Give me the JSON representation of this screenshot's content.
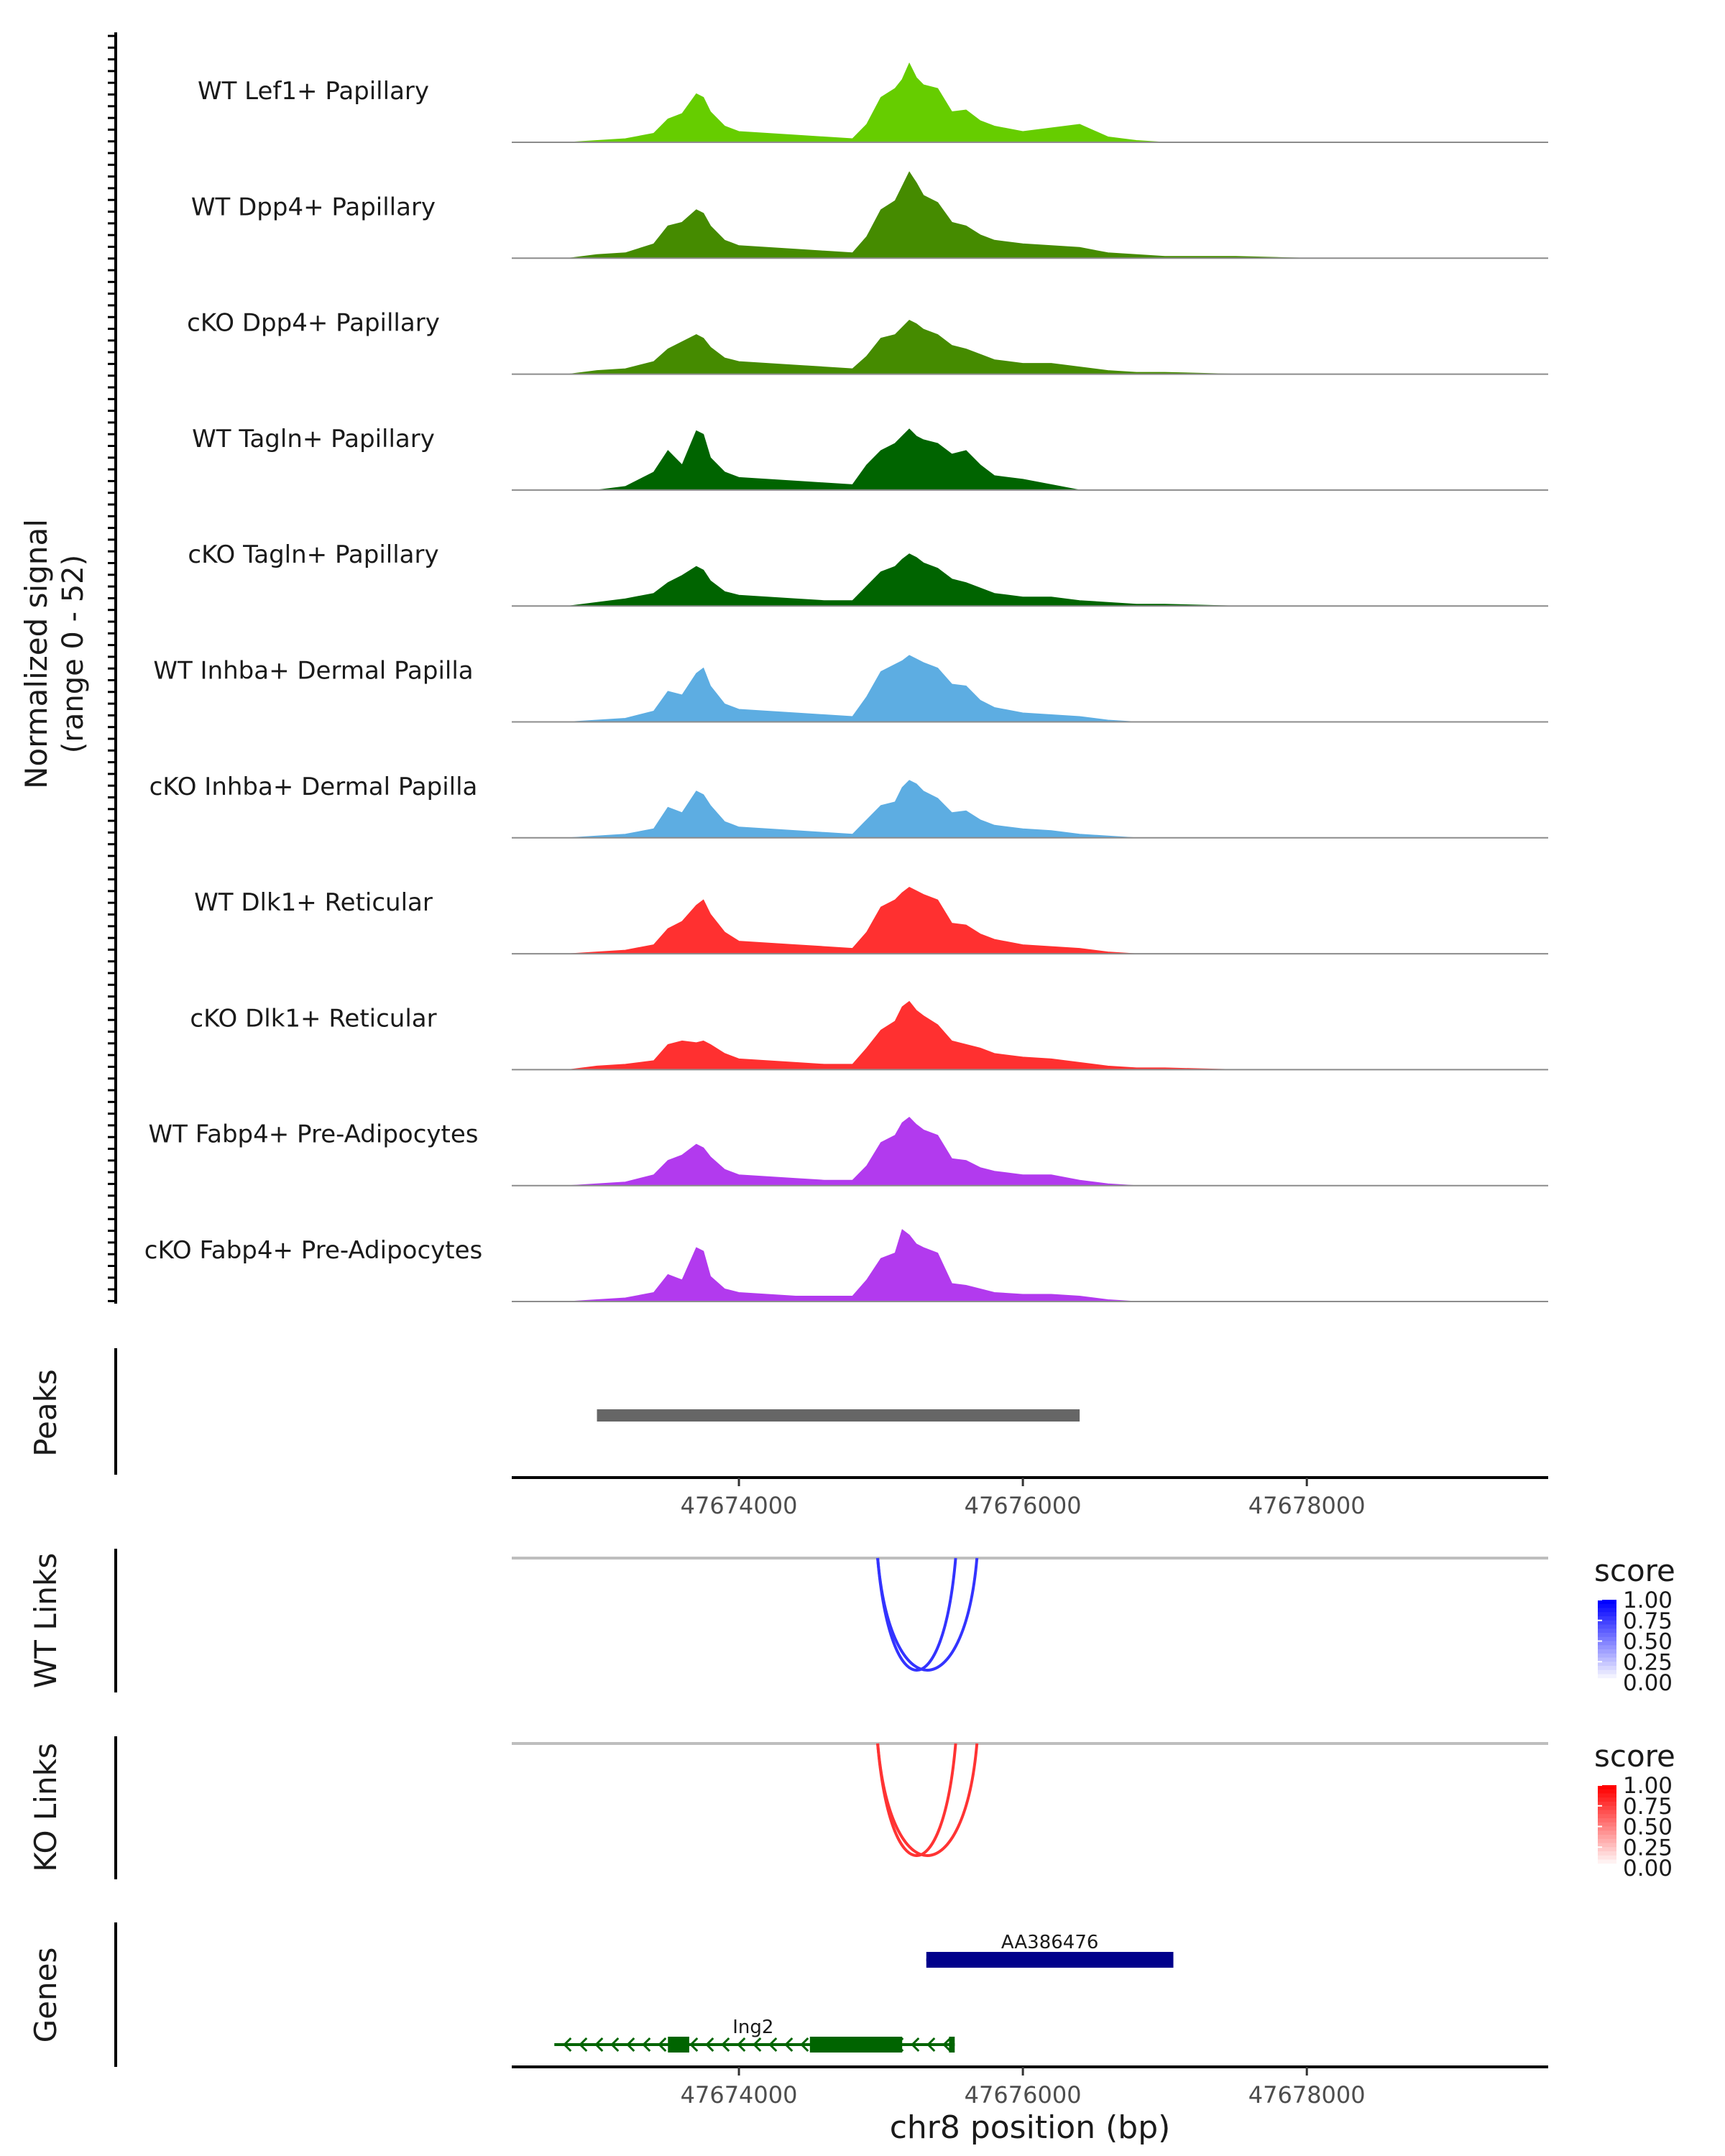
{
  "chart_data": {
    "type": "genome-coverage-track",
    "chromosome": "chr8",
    "xlim": [
      47672400,
      47679700
    ],
    "coverage": {
      "ylabel_line1": "Normalized signal",
      "ylabel_line2": "(range 0 - 52)",
      "ylim": [
        0,
        52
      ],
      "profile_x": [
        47672400,
        47672800,
        47673000,
        47673200,
        47673400,
        47673500,
        47673600,
        47673700,
        47673750,
        47673800,
        47673900,
        47674000,
        47674200,
        47674400,
        47674600,
        47674800,
        47674900,
        47675000,
        47675100,
        47675150,
        47675200,
        47675250,
        47675300,
        47675400,
        47675500,
        47675600,
        47675700,
        47675800,
        47676000,
        47676200,
        47676400,
        47676600,
        47676800,
        47677000,
        47677500,
        47678000,
        47678500,
        47679000,
        47679500,
        47679700
      ],
      "tracks": [
        {
          "name": "WT Lef1+ Papillary",
          "color": "#66cd00",
          "values": [
            0,
            0,
            1,
            2,
            5,
            13,
            16,
            27,
            25,
            17,
            9,
            6,
            5,
            4,
            3,
            2,
            10,
            25,
            30,
            35,
            44,
            36,
            32,
            30,
            17,
            18,
            12,
            9,
            6,
            8,
            10,
            3,
            1,
            0,
            0,
            0,
            0,
            0,
            0,
            0
          ]
        },
        {
          "name": "WT Dpp4+ Papillary",
          "color": "#458b00",
          "values": [
            0,
            0,
            2,
            3,
            8,
            18,
            20,
            27,
            25,
            18,
            10,
            7,
            6,
            5,
            4,
            3,
            12,
            27,
            32,
            40,
            48,
            42,
            35,
            31,
            20,
            18,
            13,
            10,
            8,
            7,
            6,
            3,
            2,
            1,
            1,
            0,
            0,
            0,
            0,
            0
          ]
        },
        {
          "name": "cKO Dpp4+ Papillary",
          "color": "#458b00",
          "values": [
            0,
            0,
            2,
            3,
            7,
            14,
            18,
            22,
            20,
            15,
            9,
            7,
            6,
            5,
            4,
            3,
            10,
            20,
            22,
            26,
            30,
            28,
            25,
            22,
            16,
            14,
            11,
            8,
            6,
            6,
            4,
            2,
            1,
            1,
            0,
            0,
            0,
            0,
            0,
            0
          ]
        },
        {
          "name": "WT Tagln+ Papillary",
          "color": "#006400",
          "values": [
            0,
            0,
            0,
            2,
            10,
            22,
            14,
            33,
            31,
            18,
            10,
            7,
            6,
            5,
            4,
            3,
            14,
            22,
            26,
            30,
            34,
            30,
            28,
            26,
            20,
            22,
            14,
            8,
            6,
            3,
            0,
            0,
            0,
            0,
            0,
            0,
            0,
            0,
            0,
            0
          ]
        },
        {
          "name": "cKO Tagln+ Papillary",
          "color": "#006400",
          "values": [
            0,
            0,
            2,
            4,
            7,
            13,
            17,
            22,
            20,
            14,
            8,
            6,
            5,
            4,
            3,
            3,
            11,
            19,
            22,
            26,
            29,
            27,
            24,
            21,
            15,
            13,
            10,
            7,
            5,
            5,
            3,
            2,
            1,
            1,
            0,
            0,
            0,
            0,
            0,
            0
          ]
        },
        {
          "name": "WT Inhba+ Dermal Papilla",
          "color": "#5dade2",
          "values": [
            0,
            0,
            1,
            2,
            6,
            17,
            15,
            27,
            30,
            20,
            10,
            7,
            6,
            5,
            4,
            3,
            14,
            28,
            32,
            34,
            37,
            35,
            33,
            30,
            21,
            20,
            12,
            8,
            5,
            4,
            3,
            1,
            0,
            0,
            0,
            0,
            0,
            0,
            0,
            0
          ]
        },
        {
          "name": "cKO Inhba+ Dermal Papilla",
          "color": "#5dade2",
          "values": [
            0,
            0,
            1,
            2,
            5,
            17,
            14,
            26,
            24,
            18,
            9,
            6,
            5,
            4,
            3,
            2,
            10,
            18,
            20,
            28,
            32,
            30,
            26,
            22,
            14,
            15,
            10,
            7,
            5,
            4,
            2,
            1,
            0,
            0,
            0,
            0,
            0,
            0,
            0,
            0
          ]
        },
        {
          "name": "WT Dlk1+ Reticular",
          "color": "#ff3030",
          "values": [
            0,
            0,
            1,
            2,
            5,
            14,
            18,
            27,
            30,
            22,
            12,
            7,
            6,
            5,
            4,
            3,
            12,
            26,
            30,
            34,
            37,
            35,
            33,
            30,
            17,
            16,
            11,
            8,
            5,
            4,
            3,
            1,
            0,
            0,
            0,
            0,
            0,
            0,
            0,
            0
          ]
        },
        {
          "name": "cKO Dlk1+ Reticular",
          "color": "#ff3030",
          "values": [
            0,
            0,
            2,
            3,
            5,
            14,
            16,
            15,
            16,
            14,
            9,
            6,
            5,
            4,
            3,
            3,
            12,
            22,
            27,
            35,
            38,
            33,
            30,
            25,
            16,
            14,
            12,
            9,
            7,
            6,
            4,
            2,
            1,
            1,
            0,
            0,
            0,
            0,
            0,
            0
          ]
        },
        {
          "name": "WT Fabp4+ Pre-Adipocytes",
          "color": "#b23aee",
          "values": [
            0,
            0,
            1,
            2,
            6,
            14,
            17,
            23,
            21,
            16,
            9,
            6,
            5,
            4,
            3,
            3,
            11,
            24,
            28,
            35,
            38,
            34,
            31,
            28,
            15,
            14,
            10,
            8,
            6,
            6,
            3,
            1,
            0,
            0,
            0,
            0,
            0,
            0,
            0,
            0
          ]
        },
        {
          "name": "cKO Fabp4+ Pre-Adipocytes",
          "color": "#b23aee",
          "values": [
            0,
            0,
            1,
            2,
            5,
            15,
            12,
            30,
            28,
            14,
            7,
            5,
            4,
            3,
            3,
            3,
            12,
            24,
            27,
            40,
            37,
            32,
            30,
            27,
            10,
            9,
            7,
            5,
            4,
            4,
            3,
            1,
            0,
            0,
            0,
            0,
            0,
            0,
            0,
            0
          ]
        }
      ]
    },
    "peaks": {
      "label": "Peaks",
      "color": "#666666",
      "regions": [
        {
          "start": 47673000,
          "end": 47676400
        }
      ]
    },
    "x_axis": {
      "ticks": [
        47674000,
        47676000,
        47678000
      ],
      "tick_labels": [
        "47674000",
        "47676000",
        "47678000"
      ],
      "label": "chr8 position (bp)"
    },
    "links": [
      {
        "label": "WT Links",
        "legend_title": "score",
        "legend_ticks": [
          "1.00",
          "0.75",
          "0.50",
          "0.25",
          "0.00"
        ],
        "color_low": "#ffffff",
        "color_high": "#0000ff",
        "arcs": [
          {
            "start": 47674800,
            "end": 47675400,
            "score": 0.8
          },
          {
            "start": 47674800,
            "end": 47675550,
            "score": 0.8
          }
        ]
      },
      {
        "label": "KO Links",
        "legend_title": "score",
        "legend_ticks": [
          "1.00",
          "0.75",
          "0.50",
          "0.25",
          "0.00"
        ],
        "color_low": "#ffffff",
        "color_high": "#ff0000",
        "arcs": [
          {
            "start": 47674800,
            "end": 47675400,
            "score": 0.8
          },
          {
            "start": 47674800,
            "end": 47675550,
            "score": 0.8
          }
        ]
      }
    ],
    "genes": {
      "label": "Genes",
      "items": [
        {
          "name": "AA386476",
          "strand": "+",
          "color": "#00008b",
          "start": 47675320,
          "end": 47677060,
          "exons": [
            {
              "start": 47675320,
              "end": 47677060
            }
          ]
        },
        {
          "name": "Ing2",
          "strand": "-",
          "color": "#006400",
          "start": 47672700,
          "end": 47675520,
          "exons": [
            {
              "start": 47673500,
              "end": 47673650
            },
            {
              "start": 47674500,
              "end": 47675150
            },
            {
              "start": 47675480,
              "end": 47675520
            }
          ]
        }
      ]
    }
  }
}
